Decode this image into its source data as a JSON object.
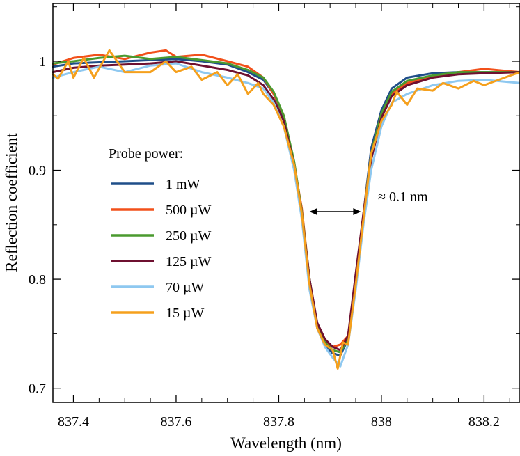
{
  "chart_data": {
    "type": "line",
    "title": "",
    "xlabel": "Wavelength (nm)",
    "ylabel": "Reflection coefficient",
    "xlim": [
      837.36,
      838.27
    ],
    "ylim": [
      0.687,
      1.053
    ],
    "xticks": [
      837.4,
      837.6,
      837.8,
      838.0,
      838.2
    ],
    "xtick_labels": [
      "837.4",
      "837.6",
      "837.8",
      "838",
      "838.2"
    ],
    "yticks": [
      0.7,
      0.8,
      0.9,
      1.0
    ],
    "ytick_labels": [
      "0.7",
      "0.8",
      "0.9",
      "1"
    ],
    "legend": {
      "title": "Probe power:",
      "placement": "center-left"
    },
    "annotation": {
      "text": "≈ 0.1 nm",
      "x_from": 837.86,
      "x_to": 837.96,
      "y": 0.862
    },
    "series": [
      {
        "name": "1 mW",
        "color": "#1f4e89",
        "x": [
          837.36,
          837.4,
          837.45,
          837.5,
          837.55,
          837.6,
          837.65,
          837.7,
          837.74,
          837.77,
          837.79,
          837.81,
          837.83,
          837.845,
          837.86,
          837.875,
          837.89,
          837.905,
          837.92,
          837.935,
          837.95,
          837.965,
          837.98,
          838.0,
          838.02,
          838.05,
          838.1,
          838.15,
          838.2,
          838.27
        ],
        "y": [
          0.995,
          0.998,
          0.999,
          1.0,
          1.001,
          1.002,
          1.0,
          0.997,
          0.99,
          0.983,
          0.97,
          0.948,
          0.905,
          0.862,
          0.8,
          0.757,
          0.74,
          0.732,
          0.73,
          0.745,
          0.8,
          0.86,
          0.92,
          0.955,
          0.975,
          0.985,
          0.989,
          0.99,
          0.99,
          0.99
        ]
      },
      {
        "name": "500 µW",
        "color": "#f2501a",
        "x": [
          837.36,
          837.4,
          837.45,
          837.5,
          837.55,
          837.58,
          837.6,
          837.65,
          837.7,
          837.74,
          837.77,
          837.79,
          837.81,
          837.83,
          837.845,
          837.86,
          837.875,
          837.89,
          837.905,
          837.92,
          837.935,
          837.95,
          837.965,
          837.98,
          838.0,
          838.02,
          838.05,
          838.1,
          838.15,
          838.2,
          838.27
        ],
        "y": [
          0.997,
          1.003,
          1.006,
          1.002,
          1.008,
          1.01,
          1.004,
          1.006,
          1.0,
          0.995,
          0.985,
          0.97,
          0.95,
          0.905,
          0.865,
          0.8,
          0.755,
          0.742,
          0.738,
          0.74,
          0.748,
          0.8,
          0.86,
          0.915,
          0.952,
          0.97,
          0.98,
          0.986,
          0.99,
          0.993,
          0.99
        ]
      },
      {
        "name": "250 µW",
        "color": "#4a9a2f",
        "x": [
          837.36,
          837.4,
          837.45,
          837.5,
          837.55,
          837.6,
          837.65,
          837.7,
          837.74,
          837.77,
          837.79,
          837.81,
          837.83,
          837.845,
          837.86,
          837.875,
          837.89,
          837.905,
          837.92,
          837.935,
          837.95,
          837.965,
          837.98,
          838.0,
          838.02,
          838.05,
          838.1,
          838.15,
          838.2,
          838.27
        ],
        "y": [
          0.998,
          1.0,
          1.003,
          1.005,
          1.002,
          1.004,
          1.001,
          0.998,
          0.992,
          0.985,
          0.972,
          0.95,
          0.908,
          0.862,
          0.8,
          0.758,
          0.742,
          0.735,
          0.733,
          0.745,
          0.8,
          0.858,
          0.915,
          0.952,
          0.972,
          0.982,
          0.987,
          0.99,
          0.99,
          0.99
        ]
      },
      {
        "name": "125 µW",
        "color": "#6e1030",
        "x": [
          837.36,
          837.4,
          837.45,
          837.5,
          837.55,
          837.6,
          837.65,
          837.7,
          837.74,
          837.77,
          837.79,
          837.81,
          837.83,
          837.845,
          837.86,
          837.875,
          837.89,
          837.905,
          837.92,
          837.935,
          837.95,
          837.965,
          837.98,
          838.0,
          838.02,
          838.05,
          838.1,
          838.15,
          838.2,
          838.27
        ],
        "y": [
          0.99,
          0.994,
          0.996,
          0.997,
          0.998,
          1.0,
          0.996,
          0.992,
          0.987,
          0.978,
          0.965,
          0.945,
          0.905,
          0.86,
          0.8,
          0.76,
          0.745,
          0.738,
          0.735,
          0.748,
          0.805,
          0.86,
          0.91,
          0.948,
          0.968,
          0.978,
          0.985,
          0.988,
          0.989,
          0.99
        ]
      },
      {
        "name": "70 µW",
        "color": "#8ec8f0",
        "x": [
          837.36,
          837.4,
          837.45,
          837.5,
          837.55,
          837.6,
          837.65,
          837.7,
          837.74,
          837.77,
          837.79,
          837.81,
          837.83,
          837.845,
          837.86,
          837.875,
          837.89,
          837.905,
          837.92,
          837.935,
          837.95,
          837.965,
          837.98,
          838.0,
          838.02,
          838.05,
          838.1,
          838.15,
          838.2,
          838.27
        ],
        "y": [
          0.985,
          0.99,
          0.995,
          0.99,
          0.996,
          0.998,
          0.99,
          0.985,
          0.98,
          0.975,
          0.962,
          0.94,
          0.9,
          0.855,
          0.79,
          0.755,
          0.738,
          0.728,
          0.72,
          0.74,
          0.79,
          0.85,
          0.9,
          0.94,
          0.962,
          0.97,
          0.978,
          0.982,
          0.983,
          0.98
        ]
      },
      {
        "name": "15 µW",
        "color": "#f5a01d",
        "x": [
          837.36,
          837.37,
          837.39,
          837.4,
          837.42,
          837.44,
          837.47,
          837.5,
          837.55,
          837.58,
          837.6,
          837.63,
          837.65,
          837.68,
          837.7,
          837.72,
          837.74,
          837.76,
          837.77,
          837.79,
          837.81,
          837.83,
          837.845,
          837.86,
          837.875,
          837.89,
          837.905,
          837.915,
          837.925,
          837.935,
          837.95,
          837.965,
          837.98,
          838.0,
          838.02,
          838.03,
          838.05,
          838.07,
          838.1,
          838.12,
          838.15,
          838.18,
          838.2,
          838.24,
          838.27
        ],
        "y": [
          0.988,
          0.984,
          1.0,
          0.985,
          1.003,
          0.985,
          1.01,
          0.99,
          0.99,
          1.0,
          0.99,
          0.995,
          0.983,
          0.99,
          0.978,
          0.988,
          0.97,
          0.98,
          0.97,
          0.96,
          0.94,
          0.905,
          0.86,
          0.795,
          0.755,
          0.74,
          0.735,
          0.718,
          0.742,
          0.74,
          0.795,
          0.855,
          0.915,
          0.945,
          0.96,
          0.972,
          0.96,
          0.975,
          0.973,
          0.98,
          0.975,
          0.982,
          0.978,
          0.985,
          0.99
        ]
      }
    ]
  }
}
